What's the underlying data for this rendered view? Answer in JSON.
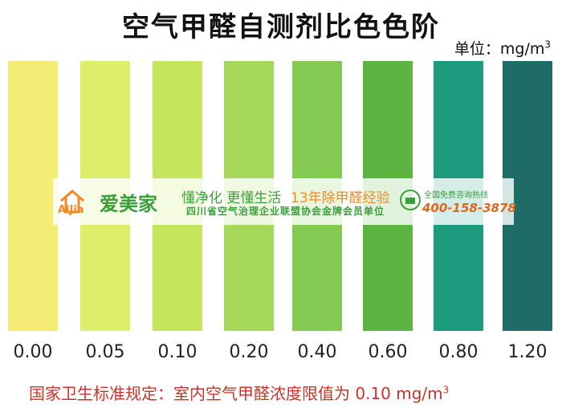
{
  "header": {
    "title": "空气甲醛自测剂比色色阶",
    "unit": "单位：mg/m",
    "unit_sup": "3"
  },
  "swatches": [
    {
      "label": "0.00",
      "color": "#f4ec74"
    },
    {
      "label": "0.05",
      "color": "#dcee6a"
    },
    {
      "label": "0.10",
      "color": "#c4e55c"
    },
    {
      "label": "0.20",
      "color": "#a6d85a"
    },
    {
      "label": "0.40",
      "color": "#84ca53"
    },
    {
      "label": "0.60",
      "color": "#5cb542"
    },
    {
      "label": "0.80",
      "color": "#1b9a7e"
    },
    {
      "label": "1.20",
      "color": "#1f6c66"
    }
  ],
  "footer": {
    "text": "国家卫生标准规定：室内空气甲醛浓度限值为 0.10 mg/m",
    "sup": "3"
  },
  "banner": {
    "logo_latin": "AiJia",
    "brand": "爱美家",
    "slogan": "懂净化 更懂生活",
    "experience": "13年除甲醛经验",
    "membership": "四川省空气治理企业联盟协会金牌会员单位",
    "hotline_label": "全国免费咨询热线",
    "hotline": "400-158-3878"
  }
}
